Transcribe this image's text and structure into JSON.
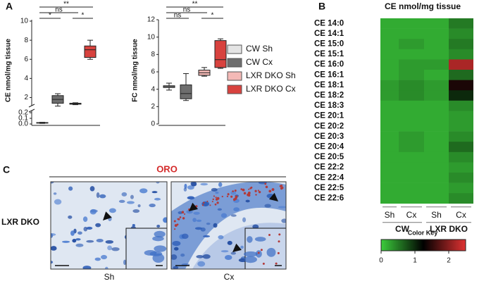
{
  "panel_labels": [
    "A",
    "B",
    "C"
  ],
  "legend": [
    {
      "name": "CW Sh",
      "color": "#e4e4e4"
    },
    {
      "name": "CW Cx",
      "color": "#6e6e6e"
    },
    {
      "name": "LXR DKO Sh",
      "color": "#f4b9b6"
    },
    {
      "name": "LXR DKO Cx",
      "color": "#d8423e"
    }
  ],
  "chart_data": [
    {
      "type": "box",
      "ylabel": "CE nmol/mg tissue",
      "segments": [
        {
          "ylim": [
            0,
            0.2
          ],
          "yticks": [
            {
              "value": 0,
              "label": "0.0"
            },
            0.1,
            0.2
          ]
        },
        {
          "ylim": [
            1,
            10
          ],
          "yticks": [
            2,
            4,
            6,
            8,
            10
          ]
        }
      ],
      "boxes": [
        {
          "min": 0.01,
          "q1": 0.015,
          "median": 0.02,
          "q3": 0.025,
          "max": 0.03
        },
        {
          "min": 1.1,
          "q1": 1.4,
          "median": 1.8,
          "q3": 2.2,
          "max": 2.4
        },
        {
          "min": 1.25,
          "q1": 1.3,
          "median": 1.35,
          "q3": 1.4,
          "max": 1.45
        },
        {
          "min": 6.0,
          "q1": 6.2,
          "median": 7.0,
          "q3": 7.4,
          "max": 8.0
        }
      ],
      "significance": [
        "*",
        "ns",
        "**",
        "*"
      ]
    },
    {
      "type": "box",
      "ylabel": "FC nmol/mg tissue",
      "ylim": [
        0,
        12
      ],
      "yticks": [
        0,
        2,
        4,
        6,
        8,
        10,
        12
      ],
      "boxes": [
        {
          "min": 3.9,
          "q1": 4.2,
          "median": 4.3,
          "q3": 4.4,
          "max": 4.7
        },
        {
          "min": 2.7,
          "q1": 2.9,
          "median": 3.5,
          "q3": 4.5,
          "max": 5.8
        },
        {
          "min": 5.5,
          "q1": 5.6,
          "median": 5.9,
          "q3": 6.2,
          "max": 6.5
        },
        {
          "min": 6.4,
          "q1": 6.5,
          "median": 7.4,
          "q3": 9.6,
          "max": 9.8
        }
      ],
      "significance": [
        "ns",
        "ns",
        "**",
        "*"
      ]
    },
    {
      "type": "heatmap",
      "title": "CE nmol/mg tissue",
      "rows": [
        "CE 14:0",
        "CE 14:1",
        "CE 15:0",
        "CE 15:1",
        "CE 16:0",
        "CE 16:1",
        "CE 18:1",
        "CE 18:2",
        "CE 18:3",
        "CE 20:1",
        "CE 20:2",
        "CE 20:3",
        "CE 20:4",
        "CE 20:5",
        "CE 22:2",
        "CE 22:4",
        "CE 22:5",
        "CE 22:6"
      ],
      "columns": [
        "Sh",
        "Cx",
        "Sh",
        "Cx"
      ],
      "groups": [
        "CW",
        "LXR DKO"
      ],
      "values": [
        [
          0.2,
          0.2,
          0.2,
          0.5
        ],
        [
          0.2,
          0.2,
          0.2,
          0.4
        ],
        [
          0.2,
          0.3,
          0.2,
          0.5
        ],
        [
          0.2,
          0.2,
          0.2,
          0.4
        ],
        [
          0.2,
          0.3,
          0.3,
          2.2
        ],
        [
          0.2,
          0.3,
          0.2,
          0.6
        ],
        [
          0.3,
          0.4,
          0.3,
          1.4
        ],
        [
          0.3,
          0.4,
          0.3,
          1.0
        ],
        [
          0.2,
          0.2,
          0.2,
          0.4
        ],
        [
          0.2,
          0.2,
          0.2,
          0.3
        ],
        [
          0.2,
          0.2,
          0.2,
          0.3
        ],
        [
          0.2,
          0.3,
          0.2,
          0.4
        ],
        [
          0.2,
          0.3,
          0.2,
          0.6
        ],
        [
          0.2,
          0.2,
          0.2,
          0.4
        ],
        [
          0.2,
          0.2,
          0.2,
          0.3
        ],
        [
          0.2,
          0.2,
          0.2,
          0.4
        ],
        [
          0.2,
          0.2,
          0.2,
          0.3
        ],
        [
          0.2,
          0.2,
          0.2,
          0.4
        ]
      ],
      "color_key": {
        "title": "Color Key",
        "lim": [
          0,
          2.5
        ],
        "ticks": [
          0,
          1,
          2
        ],
        "colors": [
          "#3ccc3c",
          "#000000",
          "#e03232"
        ]
      }
    }
  ],
  "micrographs": {
    "title": "ORO",
    "row_label": "LXR DKO",
    "columns": [
      "Sh",
      "Cx"
    ]
  }
}
